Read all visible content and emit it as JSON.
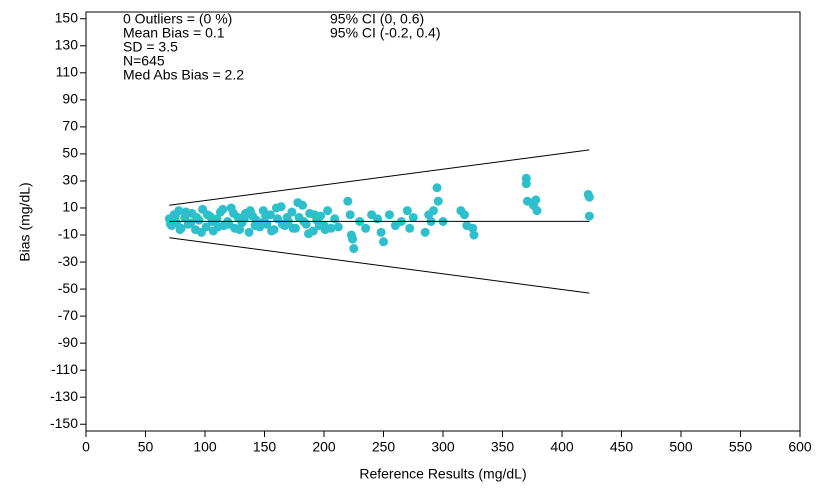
{
  "chart_data": {
    "type": "scatter",
    "xlabel": "Reference Results (mg/dL)",
    "ylabel": "Bias (mg/dL)",
    "annotations_left": [
      "0 Outliers = (0 %)",
      "Mean Bias = 0.1",
      "SD = 3.5",
      "N=645",
      "Med Abs Bias = 2.2"
    ],
    "annotations_right": [
      "95% CI (0, 0.6)",
      "95% CI (-0.2, 0.4)"
    ],
    "xlim": [
      0,
      600
    ],
    "xticks": [
      0,
      50,
      100,
      150,
      200,
      250,
      300,
      350,
      400,
      450,
      500,
      550,
      600
    ],
    "ylim": [
      -155,
      155
    ],
    "yticks": [
      -150,
      -130,
      -110,
      -90,
      -70,
      -50,
      -30,
      -10,
      10,
      30,
      50,
      70,
      90,
      110,
      130,
      150
    ],
    "color": "#2ebfcc",
    "x": [
      70,
      72,
      74,
      76,
      78,
      80,
      83,
      86,
      89,
      92,
      95,
      98,
      101,
      104,
      107,
      110,
      113,
      116,
      119,
      122,
      125,
      128,
      131,
      134,
      137,
      140,
      143,
      146,
      149,
      152,
      155,
      158,
      161,
      164,
      167,
      170,
      173,
      176,
      179,
      182,
      185,
      188,
      191,
      194,
      197,
      200,
      203,
      206,
      209,
      212,
      71,
      75,
      79,
      84,
      88,
      93,
      97,
      102,
      106,
      111,
      115,
      120,
      124,
      129,
      133,
      138,
      142,
      147,
      151,
      156,
      160,
      165,
      169,
      174,
      178,
      183,
      187,
      192,
      196,
      201,
      220,
      222,
      223,
      225,
      224,
      230,
      235,
      240,
      245,
      250,
      248,
      255,
      260,
      265,
      270,
      272,
      275,
      285,
      288,
      290,
      292,
      295,
      296,
      300,
      315,
      320,
      318,
      325,
      326,
      370,
      370,
      371,
      378,
      379,
      376,
      422,
      423,
      423
    ],
    "y": [
      2,
      -3,
      5,
      -1,
      8,
      -5,
      3,
      -2,
      6,
      -6,
      1,
      9,
      -4,
      4,
      -7,
      2,
      7,
      -3,
      0,
      10,
      -5,
      3,
      -1,
      6,
      -8,
      4,
      1,
      -4,
      8,
      -2,
      5,
      -6,
      2,
      11,
      -3,
      0,
      7,
      -5,
      3,
      12,
      -2,
      6,
      -7,
      1,
      4,
      -3,
      8,
      -5,
      2,
      -4,
      -2,
      4,
      -6,
      7,
      -1,
      3,
      -8,
      5,
      0,
      -4,
      9,
      -2,
      6,
      -6,
      2,
      8,
      -3,
      -1,
      4,
      -7,
      10,
      -2,
      3,
      -5,
      14,
      0,
      -9,
      5,
      -3,
      -6,
      15,
      5,
      -10,
      -20,
      -13,
      0,
      -5,
      5,
      2,
      -15,
      -8,
      5,
      -3,
      0,
      8,
      -5,
      3,
      -8,
      5,
      0,
      8,
      25,
      15,
      0,
      8,
      -3,
      5,
      -5,
      -10,
      32,
      28,
      15,
      16,
      8,
      12,
      20,
      18,
      4
    ],
    "lines": [
      {
        "x": [
          70,
          423
        ],
        "y": [
          0.1,
          0.1
        ]
      },
      {
        "x": [
          70,
          423
        ],
        "y": [
          12,
          53
        ]
      },
      {
        "x": [
          70,
          423
        ],
        "y": [
          -12,
          -53
        ]
      }
    ]
  }
}
